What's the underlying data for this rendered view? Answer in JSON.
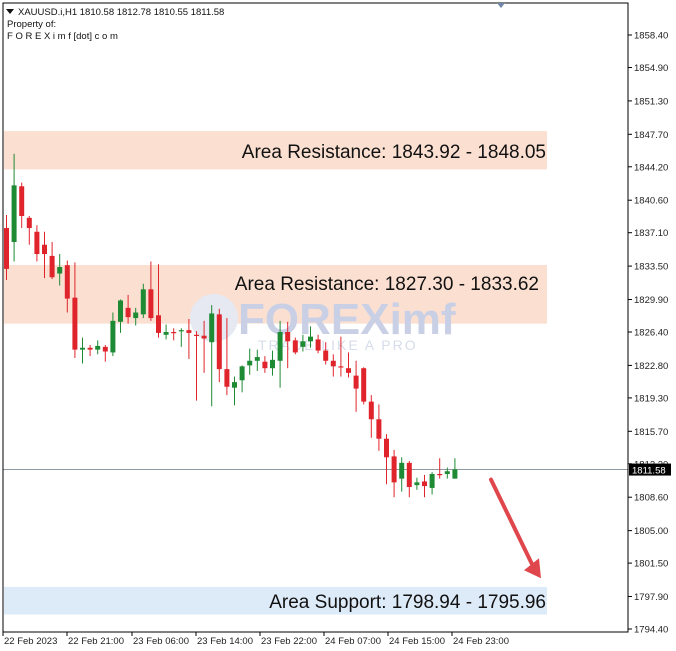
{
  "header": {
    "symbol_line": "XAUUSD.i,H1  1810.58 1812.78 1810.55 1811.58",
    "property_line": "Property of:",
    "brand_line": "F O R E X i m f [dot] c o m"
  },
  "watermark": {
    "brand": "FOREXimf",
    "tagline": "TRADE LIKE A PRO"
  },
  "current_price_tag": "1811.58",
  "zone_labels": {
    "resistance_1": "Area Resistance: 1843.92 - 1848.05",
    "resistance_2": "Area Resistance: 1827.30 - 1833.62",
    "support_1": "Area Support: 1798.94 - 1795.96"
  },
  "colors": {
    "bull": "#1e8a34",
    "bear": "#e0242b",
    "resistance_zone": "#fbe0d2",
    "support_zone": "#ddeaf8",
    "arrow": "#e0474c",
    "axis": "#000000"
  },
  "chart_data": {
    "type": "candlestick",
    "symbol": "XAUUSD.i",
    "timeframe": "H1",
    "ohlc_header": {
      "open": 1810.58,
      "high": 1812.78,
      "low": 1810.55,
      "close": 1811.58
    },
    "y_ticks": [
      "1858.40",
      "1854.90",
      "1851.30",
      "1847.70",
      "1844.20",
      "1840.60",
      "1837.10",
      "1833.50",
      "1829.90",
      "1826.40",
      "1822.80",
      "1819.30",
      "1815.70",
      "1812.20",
      "1808.60",
      "1805.00",
      "1801.50",
      "1797.90",
      "1794.40"
    ],
    "x_ticks": [
      "22 Feb 2023",
      "22 Feb 21:00",
      "23 Feb 06:00",
      "23 Feb 14:00",
      "23 Feb 22:00",
      "24 Feb 07:00",
      "24 Feb 15:00",
      "24 Feb 23:00"
    ],
    "ylim": [
      1793.9,
      1860.0
    ],
    "current_price": 1811.58,
    "zones": [
      {
        "kind": "resistance",
        "low": 1843.92,
        "high": 1848.05
      },
      {
        "kind": "resistance",
        "low": 1827.3,
        "high": 1833.62
      },
      {
        "kind": "support",
        "low": 1795.96,
        "high": 1798.94
      }
    ],
    "projection": {
      "direction": "down",
      "from": 1810.5,
      "to": 1800.3
    },
    "candles": [
      [
        1837.6,
        1839.0,
        1832.0,
        1833.2
      ],
      [
        1836.1,
        1845.6,
        1834.0,
        1842.2
      ],
      [
        1842.1,
        1842.5,
        1837.6,
        1838.9
      ],
      [
        1838.7,
        1838.9,
        1835.8,
        1837.6
      ],
      [
        1837.2,
        1837.9,
        1834.0,
        1834.8
      ],
      [
        1835.8,
        1837.2,
        1832.2,
        1834.8
      ],
      [
        1834.6,
        1836.1,
        1832.1,
        1832.3
      ],
      [
        1832.7,
        1834.8,
        1831.4,
        1833.4
      ],
      [
        1833.6,
        1834.1,
        1828.5,
        1830.0
      ],
      [
        1830.1,
        1833.9,
        1823.6,
        1824.5
      ],
      [
        1824.5,
        1825.8,
        1823.0,
        1824.7
      ],
      [
        1824.7,
        1825.0,
        1823.8,
        1824.5
      ],
      [
        1824.5,
        1825.5,
        1824.0,
        1824.9
      ],
      [
        1824.8,
        1825.0,
        1823.2,
        1824.3
      ],
      [
        1824.2,
        1828.5,
        1823.8,
        1827.6
      ],
      [
        1827.5,
        1829.9,
        1826.3,
        1829.8
      ],
      [
        1829.0,
        1830.4,
        1827.3,
        1828.0
      ],
      [
        1827.9,
        1829.0,
        1827.1,
        1828.5
      ],
      [
        1828.3,
        1831.6,
        1827.9,
        1831.0
      ],
      [
        1831.0,
        1834.0,
        1827.6,
        1827.9
      ],
      [
        1828.2,
        1833.7,
        1825.8,
        1826.3
      ],
      [
        1826.1,
        1827.2,
        1825.6,
        1826.4
      ],
      [
        1826.4,
        1826.8,
        1825.5,
        1826.3
      ],
      [
        1826.5,
        1826.8,
        1824.8,
        1826.6
      ],
      [
        1826.6,
        1827.8,
        1823.5,
        1826.3
      ],
      [
        1826.1,
        1826.5,
        1819.0,
        1826.0
      ],
      [
        1826.0,
        1827.6,
        1822.0,
        1825.7
      ],
      [
        1825.3,
        1829.3,
        1818.4,
        1828.4
      ],
      [
        1828.3,
        1828.9,
        1821.0,
        1822.4
      ],
      [
        1822.4,
        1827.9,
        1819.6,
        1820.5
      ],
      [
        1820.4,
        1821.6,
        1818.5,
        1821.0
      ],
      [
        1821.2,
        1822.8,
        1819.9,
        1822.7
      ],
      [
        1822.8,
        1824.6,
        1821.8,
        1823.3
      ],
      [
        1823.3,
        1824.5,
        1822.2,
        1823.7
      ],
      [
        1823.2,
        1823.8,
        1822.0,
        1822.5
      ],
      [
        1822.5,
        1824.4,
        1821.7,
        1823.4
      ],
      [
        1823.3,
        1827.6,
        1820.4,
        1826.4
      ],
      [
        1826.4,
        1827.5,
        1822.5,
        1825.4
      ],
      [
        1825.5,
        1825.8,
        1824.0,
        1824.2
      ],
      [
        1824.8,
        1826.1,
        1824.3,
        1825.4
      ],
      [
        1825.4,
        1827.0,
        1824.7,
        1825.9
      ],
      [
        1825.6,
        1826.1,
        1824.1,
        1824.4
      ],
      [
        1824.4,
        1825.3,
        1822.9,
        1823.3
      ],
      [
        1823.3,
        1824.0,
        1821.6,
        1822.7
      ],
      [
        1822.7,
        1825.9,
        1821.6,
        1822.6
      ],
      [
        1822.5,
        1824.2,
        1821.5,
        1822.0
      ],
      [
        1821.7,
        1823.3,
        1817.8,
        1820.3
      ],
      [
        1822.5,
        1822.6,
        1818.6,
        1818.9
      ],
      [
        1818.9,
        1819.6,
        1815.0,
        1817.0
      ],
      [
        1817.0,
        1818.6,
        1813.6,
        1814.9
      ],
      [
        1814.9,
        1815.4,
        1810.0,
        1812.9
      ],
      [
        1813.0,
        1813.7,
        1808.6,
        1810.2
      ],
      [
        1810.6,
        1812.9,
        1809.2,
        1812.3
      ],
      [
        1812.3,
        1812.5,
        1808.6,
        1809.7
      ],
      [
        1809.9,
        1810.7,
        1809.4,
        1810.2
      ],
      [
        1810.3,
        1811.0,
        1808.6,
        1809.8
      ],
      [
        1809.6,
        1811.3,
        1808.9,
        1811.1
      ],
      [
        1811.1,
        1812.8,
        1810.6,
        1811.0
      ],
      [
        1811.1,
        1811.8,
        1810.6,
        1811.4
      ],
      [
        1810.6,
        1812.8,
        1810.6,
        1811.6
      ]
    ]
  }
}
